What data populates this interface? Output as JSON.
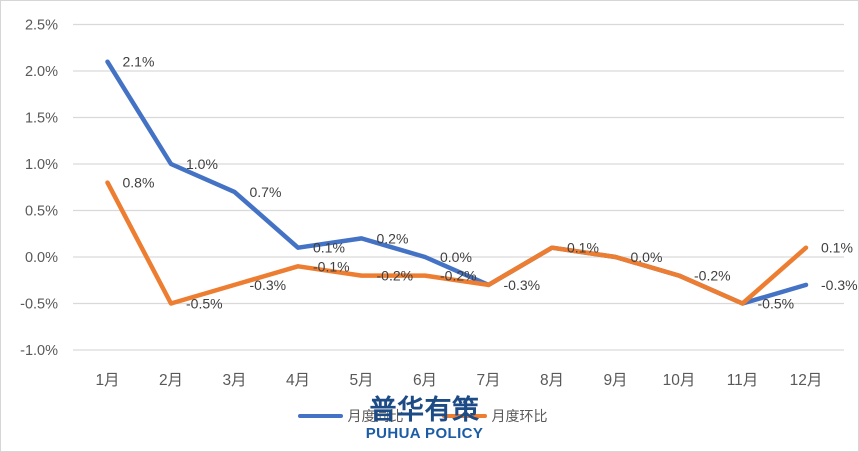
{
  "chart_data": {
    "type": "line",
    "title": "",
    "xlabel": "",
    "ylabel": "",
    "categories": [
      "1月",
      "2月",
      "3月",
      "4月",
      "5月",
      "6月",
      "7月",
      "8月",
      "9月",
      "10月",
      "11月",
      "12月"
    ],
    "series": [
      {
        "id": "yoy",
        "name": "月度同比",
        "color": "#4472C4",
        "values": [
          2.1,
          1.0,
          0.7,
          0.1,
          0.2,
          0.0,
          -0.3,
          0.1,
          0.0,
          -0.2,
          -0.5,
          -0.3
        ],
        "labels": [
          "2.1%",
          "1.0%",
          "0.7%",
          "0.1%",
          "0.2%",
          "0.0%",
          null,
          null,
          null,
          null,
          null,
          "-0.3%"
        ]
      },
      {
        "id": "mom",
        "name": "月度环比",
        "color": "#ED7D31",
        "values": [
          0.8,
          -0.5,
          -0.3,
          -0.1,
          -0.2,
          -0.2,
          -0.3,
          0.1,
          0.0,
          -0.2,
          -0.5,
          0.1
        ],
        "labels": [
          "0.8%",
          "-0.5%",
          "-0.3%",
          "-0.1%",
          "-0.2%",
          "-0.2%",
          "-0.3%",
          "0.1%",
          "0.0%",
          "-0.2%",
          "-0.5%",
          "0.1%"
        ]
      }
    ],
    "y_ticks": [
      {
        "value": 2.5,
        "label": "2.5%"
      },
      {
        "value": 2.0,
        "label": "2.0%"
      },
      {
        "value": 1.5,
        "label": "1.5%"
      },
      {
        "value": 1.0,
        "label": "1.0%"
      },
      {
        "value": 0.5,
        "label": "0.5%"
      },
      {
        "value": 0.0,
        "label": "0.0%"
      },
      {
        "value": -0.5,
        "label": "-0.5%"
      },
      {
        "value": -1.0,
        "label": "-1.0%"
      }
    ],
    "ylim": [
      -1.0,
      2.5
    ],
    "grid": true,
    "legend_position": "bottom"
  },
  "style": {
    "gridline_color": "#d9d9d9",
    "axis_text_color": "#595959",
    "data_label_color": "#3f3f3f"
  },
  "watermark": {
    "line1": "普华有策",
    "line2": "PUHUA POLICY"
  }
}
